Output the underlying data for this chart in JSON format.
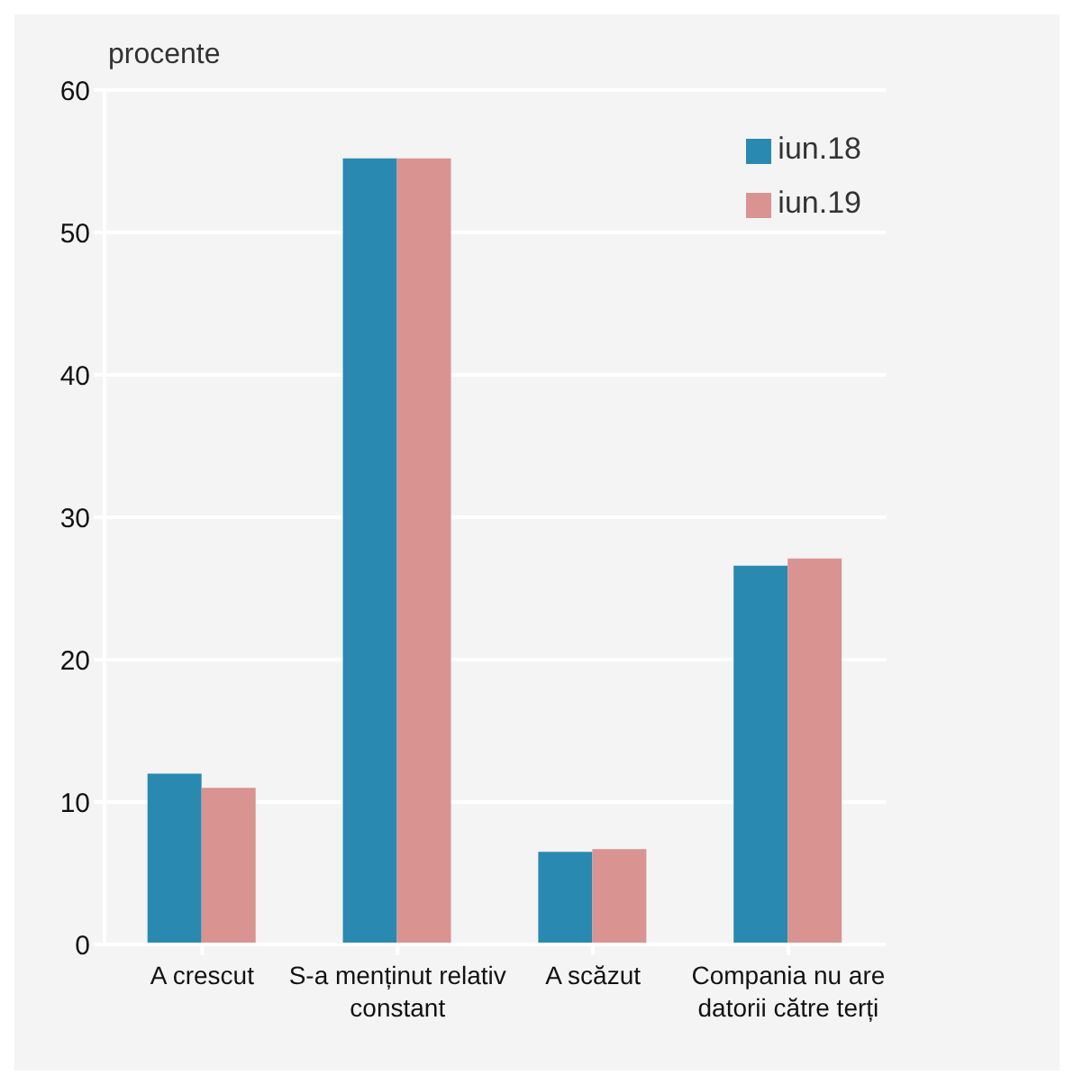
{
  "chart_data": {
    "type": "bar",
    "ylabel": "procente",
    "categories": [
      "A crescut",
      "S-a menținut relativ constant",
      "A scăzut",
      "Compania nu are datorii către terți"
    ],
    "series": [
      {
        "name": "iun.18",
        "color": "#2a89b0",
        "values": [
          12,
          55.2,
          6.5,
          26.6
        ]
      },
      {
        "name": "iun.19",
        "color": "#d99391",
        "values": [
          11,
          55.2,
          6.7,
          27.1
        ]
      }
    ],
    "ylim": [
      0,
      60
    ],
    "yticks": [
      0,
      10,
      20,
      30,
      40,
      50,
      60
    ],
    "grid": "y",
    "legend": "top right"
  }
}
